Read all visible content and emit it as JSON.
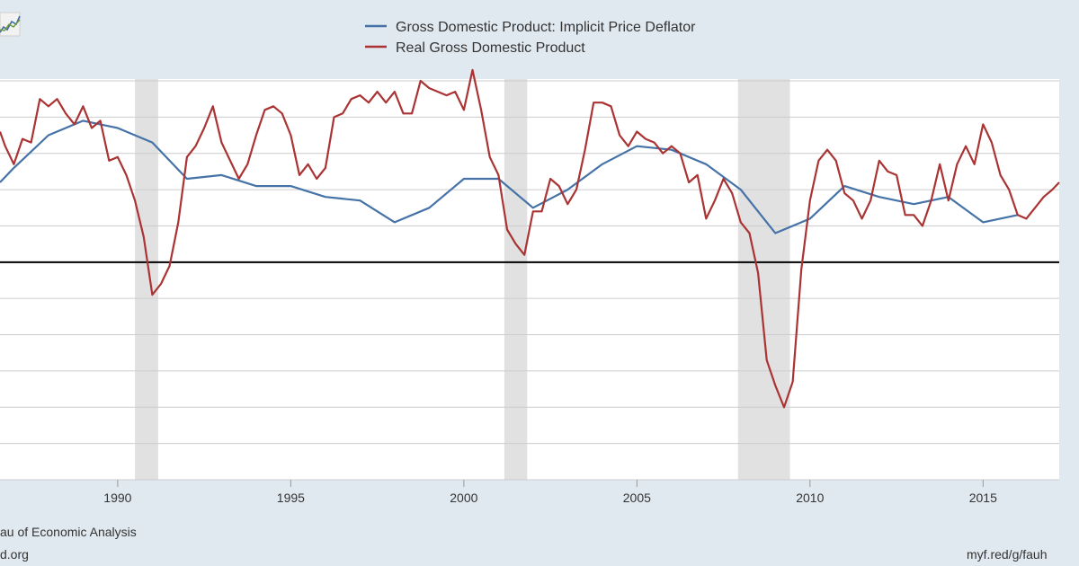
{
  "legend": {
    "series_1": "Gross Domestic Product: Implicit Price Deflator",
    "series_2": "Real Gross Domestic Product"
  },
  "footer": {
    "source": "au of Economic Analysis",
    "site": "d.org",
    "short_link": "myf.red/g/fauh"
  },
  "icons": {
    "chart_thumbnail": "line-chart-icon"
  },
  "colors": {
    "background": "#e1e9f0",
    "plot": "#ffffff",
    "deflator": "#4572a7",
    "real_gdp": "#aa3333",
    "recession": "#e1e1e1",
    "zero_line": "#000000"
  },
  "chart_data": {
    "type": "line",
    "title": "",
    "xlabel": "",
    "ylabel": "",
    "xlim": [
      1986.6,
      2017.2
    ],
    "ylim": [
      -6,
      5
    ],
    "x_ticks": [
      1990,
      1995,
      2000,
      2005,
      2010,
      2015
    ],
    "grid": true,
    "legend_position": "top-center",
    "zero_line": 0,
    "recessions": [
      [
        1990.5,
        1991.17
      ],
      [
        2001.17,
        2001.83
      ],
      [
        2007.92,
        2009.42
      ]
    ],
    "series": [
      {
        "name": "Gross Domestic Product: Implicit Price Deflator",
        "color": "#4572a7",
        "x": [
          1986.6,
          1987.0,
          1988.0,
          1989.0,
          1990.0,
          1991.0,
          1992.0,
          1993.0,
          1994.0,
          1995.0,
          1996.0,
          1997.0,
          1998.0,
          1999.0,
          2000.0,
          2001.0,
          2002.0,
          2003.0,
          2004.0,
          2005.0,
          2006.0,
          2007.0,
          2008.0,
          2009.0,
          2010.0,
          2011.0,
          2012.0,
          2013.0,
          2014.0,
          2015.0,
          2016.0
        ],
        "values": [
          2.2,
          2.6,
          3.5,
          3.9,
          3.7,
          3.3,
          2.3,
          2.4,
          2.1,
          2.1,
          1.8,
          1.7,
          1.1,
          1.5,
          2.3,
          2.3,
          1.5,
          2.0,
          2.7,
          3.2,
          3.1,
          2.7,
          2.0,
          0.8,
          1.2,
          2.1,
          1.8,
          1.6,
          1.8,
          1.1,
          1.3
        ]
      },
      {
        "name": "Real Gross Domestic Product",
        "color": "#aa3333",
        "x": [
          1986.6,
          1986.75,
          1987.0,
          1987.25,
          1987.5,
          1987.75,
          1988.0,
          1988.25,
          1988.5,
          1988.75,
          1989.0,
          1989.25,
          1989.5,
          1989.75,
          1990.0,
          1990.25,
          1990.5,
          1990.75,
          1991.0,
          1991.25,
          1991.5,
          1991.75,
          1992.0,
          1992.25,
          1992.5,
          1992.75,
          1993.0,
          1993.25,
          1993.5,
          1993.75,
          1994.0,
          1994.25,
          1994.5,
          1994.75,
          1995.0,
          1995.25,
          1995.5,
          1995.75,
          1996.0,
          1996.25,
          1996.5,
          1996.75,
          1997.0,
          1997.25,
          1997.5,
          1997.75,
          1998.0,
          1998.25,
          1998.5,
          1998.75,
          1999.0,
          1999.25,
          1999.5,
          1999.75,
          2000.0,
          2000.25,
          2000.5,
          2000.75,
          2001.0,
          2001.25,
          2001.5,
          2001.75,
          2002.0,
          2002.25,
          2002.5,
          2002.75,
          2003.0,
          2003.25,
          2003.5,
          2003.75,
          2004.0,
          2004.25,
          2004.5,
          2004.75,
          2005.0,
          2005.25,
          2005.5,
          2005.75,
          2006.0,
          2006.25,
          2006.5,
          2006.75,
          2007.0,
          2007.25,
          2007.5,
          2007.75,
          2008.0,
          2008.25,
          2008.5,
          2008.75,
          2009.0,
          2009.25,
          2009.5,
          2009.75,
          2010.0,
          2010.25,
          2010.5,
          2010.75,
          2011.0,
          2011.25,
          2011.5,
          2011.75,
          2012.0,
          2012.25,
          2012.5,
          2012.75,
          2013.0,
          2013.25,
          2013.5,
          2013.75,
          2014.0,
          2014.25,
          2014.5,
          2014.75,
          2015.0,
          2015.25,
          2015.5,
          2015.75,
          2016.0,
          2016.25,
          2016.5,
          2016.75,
          2017.0,
          2017.2
        ],
        "values": [
          3.6,
          3.2,
          2.7,
          3.4,
          3.3,
          4.5,
          4.3,
          4.5,
          4.1,
          3.8,
          4.3,
          3.7,
          3.9,
          2.8,
          2.9,
          2.4,
          1.7,
          0.7,
          -0.9,
          -0.6,
          -0.1,
          1.1,
          2.9,
          3.2,
          3.7,
          4.3,
          3.3,
          2.8,
          2.3,
          2.7,
          3.5,
          4.2,
          4.3,
          4.1,
          3.5,
          2.4,
          2.7,
          2.3,
          2.6,
          4.0,
          4.1,
          4.5,
          4.6,
          4.4,
          4.7,
          4.4,
          4.7,
          4.1,
          4.1,
          5.0,
          4.8,
          4.7,
          4.6,
          4.7,
          4.2,
          5.3,
          4.2,
          2.9,
          2.4,
          0.9,
          0.5,
          0.2,
          1.4,
          1.4,
          2.3,
          2.1,
          1.6,
          2.0,
          3.1,
          4.4,
          4.4,
          4.3,
          3.5,
          3.2,
          3.6,
          3.4,
          3.3,
          3.0,
          3.2,
          3.0,
          2.2,
          2.4,
          1.2,
          1.7,
          2.3,
          1.9,
          1.1,
          0.8,
          -0.3,
          -2.7,
          -3.4,
          -4.0,
          -3.3,
          -0.2,
          1.7,
          2.8,
          3.1,
          2.8,
          1.9,
          1.7,
          1.2,
          1.7,
          2.8,
          2.5,
          2.4,
          1.3,
          1.3,
          1.0,
          1.7,
          2.7,
          1.7,
          2.7,
          3.2,
          2.7,
          3.8,
          3.3,
          2.4,
          2.0,
          1.3,
          1.2,
          1.5,
          1.8,
          2.0,
          2.2
        ]
      }
    ]
  }
}
